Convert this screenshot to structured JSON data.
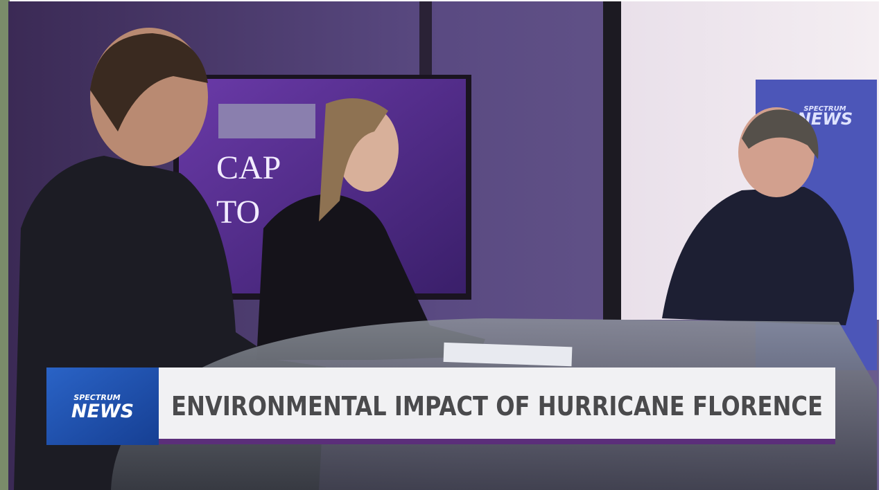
{
  "background_screen": {
    "line_1": "CAP",
    "line_2": "TO"
  },
  "wall_logo": {
    "brand_top": "SPECTRUM",
    "brand_bottom": "NEWS"
  },
  "lower_third": {
    "logo_top": "SPECTRUM",
    "logo_bottom": "NEWS",
    "headline": "ENVIRONMENTAL IMPACT OF HURRICANE FLORENCE"
  }
}
